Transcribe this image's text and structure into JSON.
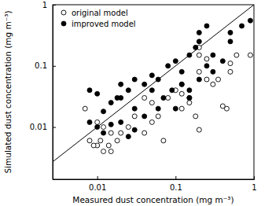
{
  "chart_data": {
    "type": "scatter",
    "x_label": "Measured dust concentration (mg m⁻³)",
    "y_label": "Simulated dust concentration (mg m⁻³)",
    "log": true,
    "legend": "upper left",
    "xlim": [
      0.0027,
      1
    ],
    "ylim": [
      0.0014,
      1
    ],
    "xticks": [
      0.01,
      0.1,
      1
    ],
    "yticks": [
      0.01,
      0.1,
      1
    ],
    "series": [
      {
        "name": "original model",
        "color": "#000000",
        "marker": "open-circle",
        "x": [
          0.9,
          0.6,
          0.5,
          0.45,
          0.4,
          0.3,
          0.25,
          0.2,
          0.2,
          0.2,
          0.15,
          0.15,
          0.12,
          0.12,
          0.12,
          0.2,
          0.18,
          0.1,
          0.08,
          0.07,
          0.06,
          0.05,
          0.05,
          0.04,
          0.04,
          0.03,
          0.025,
          0.02,
          0.018,
          0.015,
          0.014,
          0.012,
          0.011,
          0.01,
          0.009,
          0.008,
          0.007,
          0.01,
          0.012,
          0.015,
          0.25,
          0.35,
          0.5
        ],
        "values": [
          0.15,
          0.15,
          0.08,
          0.02,
          0.022,
          0.05,
          0.06,
          0.2,
          0.15,
          0.08,
          0.03,
          0.025,
          0.05,
          0.02,
          0.035,
          0.009,
          0.015,
          0.04,
          0.03,
          0.006,
          0.015,
          0.025,
          0.012,
          0.03,
          0.008,
          0.015,
          0.01,
          0.008,
          0.006,
          0.004,
          0.005,
          0.004,
          0.006,
          0.005,
          0.005,
          0.006,
          0.02,
          0.012,
          0.01,
          0.008,
          0.13,
          0.06,
          0.11
        ]
      },
      {
        "name": "improved model",
        "color": "#000000",
        "marker": "circle",
        "x": [
          0.9,
          0.7,
          0.5,
          0.25,
          0.2,
          0.2,
          0.18,
          0.3,
          0.15,
          0.1,
          0.12,
          0.08,
          0.06,
          0.05,
          0.05,
          0.04,
          0.03,
          0.025,
          0.02,
          0.02,
          0.018,
          0.015,
          0.03,
          0.04,
          0.06,
          0.07,
          0.09,
          0.12,
          0.15,
          0.2,
          0.25,
          0.3,
          0.4,
          0.008,
          0.01,
          0.012,
          0.008,
          0.01,
          0.012,
          0.015,
          0.02,
          0.025,
          0.03,
          0.1,
          0.15,
          0.5
        ],
        "values": [
          0.55,
          0.45,
          0.35,
          0.45,
          0.35,
          0.25,
          0.2,
          0.15,
          0.15,
          0.12,
          0.08,
          0.1,
          0.06,
          0.07,
          0.04,
          0.05,
          0.06,
          0.04,
          0.05,
          0.03,
          0.03,
          0.025,
          0.02,
          0.015,
          0.02,
          0.03,
          0.04,
          0.05,
          0.04,
          0.06,
          0.1,
          0.08,
          0.12,
          0.04,
          0.035,
          0.018,
          0.012,
          0.01,
          0.008,
          0.011,
          0.012,
          0.007,
          0.009,
          0.02,
          0.03,
          0.25
        ]
      }
    ]
  }
}
